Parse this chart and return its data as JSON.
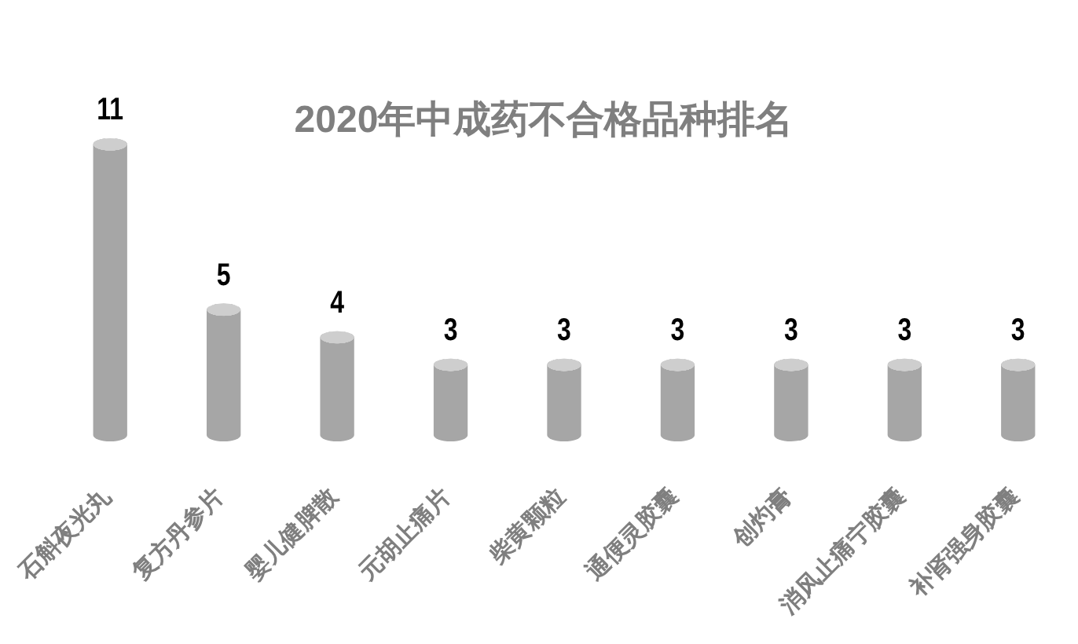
{
  "chart_data": {
    "type": "bar",
    "title": "2020年中成药不合格品种排名",
    "categories": [
      "石斛夜光丸",
      "复方丹参片",
      "婴儿健脾散",
      "元胡止痛片",
      "柴黄颗粒",
      "通便灵胶囊",
      "创灼膏",
      "消风止痛宁胶囊",
      "补肾强身胶囊"
    ],
    "values": [
      11,
      5,
      4,
      3,
      3,
      3,
      3,
      3,
      3
    ],
    "color": "#a6a6a6",
    "data_labels": true
  }
}
